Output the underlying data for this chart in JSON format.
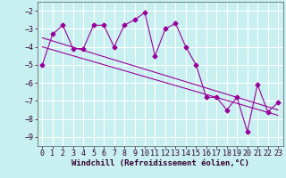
{
  "xlabel": "Windchill (Refroidissement éolien,°C)",
  "ylabel": "",
  "bg_color": "#c8f0f0",
  "line_color": "#990099",
  "grid_color": "#ffffff",
  "xlim": [
    -0.5,
    23.5
  ],
  "ylim": [
    -9.5,
    -1.5
  ],
  "yticks": [
    -9,
    -8,
    -7,
    -6,
    -5,
    -4,
    -3,
    -2
  ],
  "xticks": [
    0,
    1,
    2,
    3,
    4,
    5,
    6,
    7,
    8,
    9,
    10,
    11,
    12,
    13,
    14,
    15,
    16,
    17,
    18,
    19,
    20,
    21,
    22,
    23
  ],
  "series1_x": [
    0,
    1,
    2,
    3,
    4,
    5,
    6,
    7,
    8,
    9,
    10,
    11,
    12,
    13,
    14,
    15,
    16,
    17,
    18,
    19,
    20,
    21,
    22,
    23
  ],
  "series1_y": [
    -5.0,
    -3.3,
    -2.8,
    -4.1,
    -4.1,
    -2.8,
    -2.8,
    -4.0,
    -2.8,
    -2.5,
    -2.1,
    -4.5,
    -3.0,
    -2.7,
    -4.0,
    -5.0,
    -6.8,
    -6.8,
    -7.5,
    -6.8,
    -8.7,
    -6.1,
    -7.6,
    -7.1
  ],
  "series2_x": [
    0,
    23
  ],
  "series2_y": [
    -3.5,
    -7.5
  ],
  "series3_x": [
    0,
    23
  ],
  "series3_y": [
    -4.0,
    -7.8
  ],
  "marker": "D",
  "markersize": 2.5,
  "linewidth": 0.8,
  "xlabel_fontsize": 6.5,
  "tick_fontsize": 6.0
}
